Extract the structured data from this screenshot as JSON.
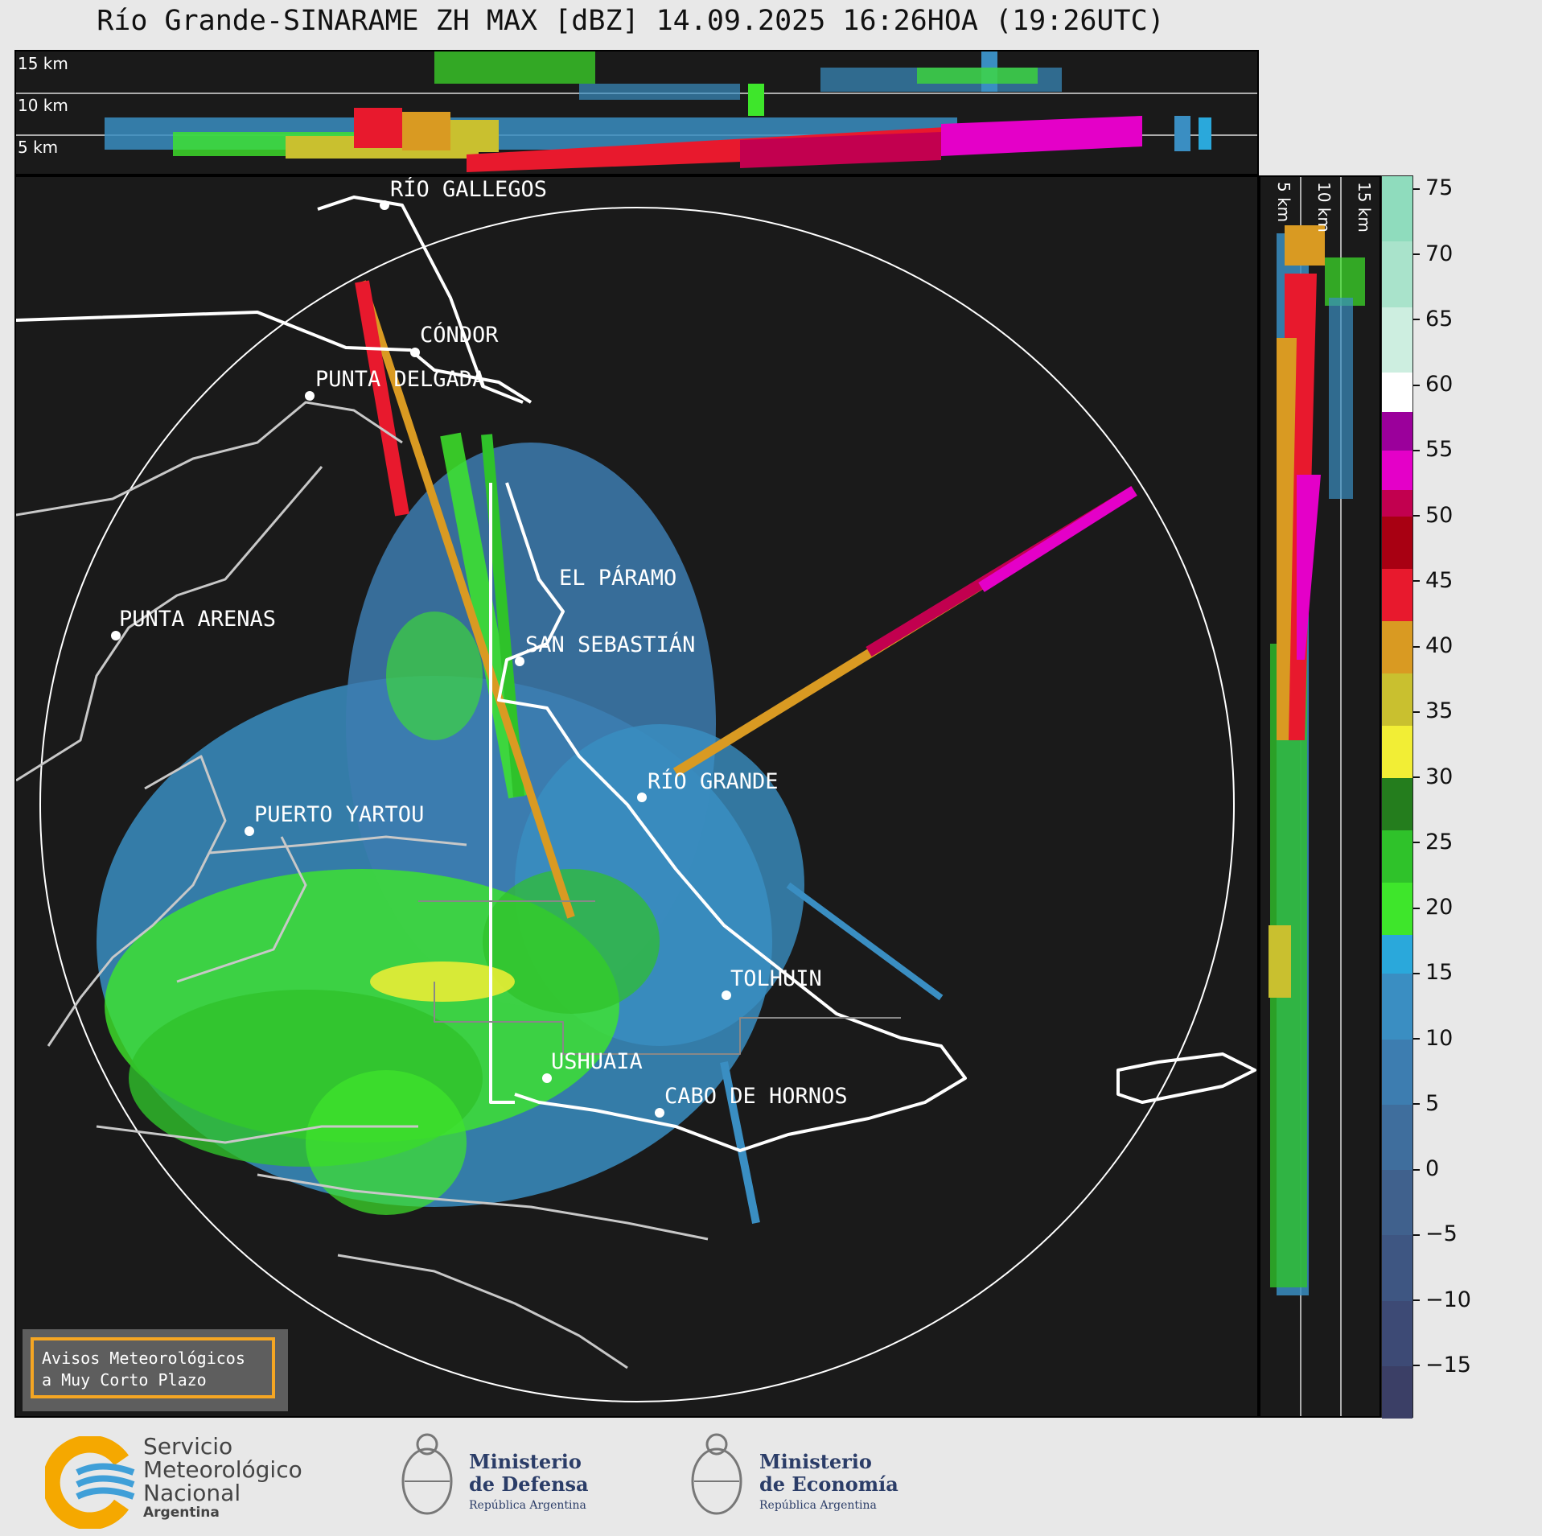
{
  "title": "Río Grande-SINARAME ZH MAX [dBZ] 14.09.2025 16:26HOA (19:26UTC)",
  "height_labels": {
    "h15": "15 km",
    "h10": "10 km",
    "h5": "5 km"
  },
  "places": {
    "rio_gallegos": "RÍO GALLEGOS",
    "condor": "CÓNDOR",
    "punta_delgada": "PUNTA DELGADA",
    "el_paramo": "EL PÁRAMO",
    "punta_arenas": "PUNTA ARENAS",
    "san_sebastian": "SAN SEBASTIÁN",
    "rio_grande": "RÍO GRANDE",
    "puerto_yartou": "PUERTO YARTOU",
    "tolhuin": "TOLHUIN",
    "ushuaia": "USHUAIA",
    "cabo_de_hornos": "CABO DE HORNOS"
  },
  "colorbar": {
    "unit": "dBZ",
    "ticks": [
      "75",
      "70",
      "65",
      "60",
      "55",
      "50",
      "45",
      "40",
      "35",
      "30",
      "25",
      "20",
      "15",
      "10",
      "5",
      "0",
      "−5",
      "−10",
      "−15"
    ],
    "range": [
      -19,
      76
    ],
    "bands": [
      {
        "from": -19,
        "to": -15,
        "color": "#3b3f66"
      },
      {
        "from": -15,
        "to": -10,
        "color": "#3d4a75"
      },
      {
        "from": -10,
        "to": -5,
        "color": "#3e5682"
      },
      {
        "from": -5,
        "to": 0,
        "color": "#40618d"
      },
      {
        "from": 0,
        "to": 5,
        "color": "#3f6e9d"
      },
      {
        "from": 5,
        "to": 10,
        "color": "#3d7db0"
      },
      {
        "from": 10,
        "to": 15,
        "color": "#3a8ec2"
      },
      {
        "from": 15,
        "to": 18,
        "color": "#2aa8db"
      },
      {
        "from": 18,
        "to": 22,
        "color": "#3ee62b"
      },
      {
        "from": 22,
        "to": 26,
        "color": "#2fc22a"
      },
      {
        "from": 26,
        "to": 30,
        "color": "#247d1d"
      },
      {
        "from": 30,
        "to": 34,
        "color": "#f2ee35"
      },
      {
        "from": 34,
        "to": 38,
        "color": "#c9c02f"
      },
      {
        "from": 38,
        "to": 42,
        "color": "#d99a22"
      },
      {
        "from": 42,
        "to": 46,
        "color": "#e8192d"
      },
      {
        "from": 46,
        "to": 50,
        "color": "#a80012"
      },
      {
        "from": 50,
        "to": 52,
        "color": "#c2004f"
      },
      {
        "from": 52,
        "to": 55,
        "color": "#e400c8"
      },
      {
        "from": 55,
        "to": 58,
        "color": "#9b009b"
      },
      {
        "from": 58,
        "to": 61,
        "color": "#ffffff"
      },
      {
        "from": 61,
        "to": 66,
        "color": "#cdeee0"
      },
      {
        "from": 66,
        "to": 71,
        "color": "#a9e3cb"
      },
      {
        "from": 71,
        "to": 76,
        "color": "#8fdcbd"
      }
    ]
  },
  "warning": {
    "line1": "Avisos Meteorológicos",
    "line2": "a Muy Corto Plazo"
  },
  "footer": {
    "smn": {
      "line1": "Servicio",
      "line2": "Meteorológico",
      "line3": "Nacional",
      "line4": "Argentina"
    },
    "defensa": {
      "line1": "Ministerio",
      "line2": "de Defensa",
      "sub": "República Argentina"
    },
    "economia": {
      "line1": "Ministerio",
      "line2": "de Economía",
      "sub": "República Argentina"
    }
  },
  "colors": {
    "background": "#1a1a1a",
    "coast": "#ffffff",
    "coast_other": "#c8c8c8",
    "warning_border": "#f5a623"
  }
}
